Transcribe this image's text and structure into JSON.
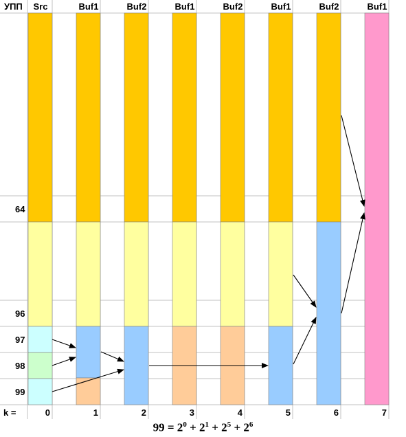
{
  "header": {
    "row_label": "УПП",
    "columns": [
      "Src",
      "Buf1",
      "Buf2",
      "Buf1",
      "Buf2",
      "Buf1",
      "Buf2",
      "Buf1"
    ]
  },
  "row_labels": [
    "64",
    "96",
    "97",
    "98",
    "99"
  ],
  "k_row": {
    "label": "k =",
    "values": [
      "0",
      "1",
      "2",
      "3",
      "4",
      "5",
      "6",
      "7"
    ]
  },
  "formula": {
    "lhs": "99 = 2",
    "exp0": "0",
    "plus1": " + 2",
    "exp1": "1",
    "plus2": " + 2",
    "exp2": "5",
    "plus3": " + 2",
    "exp3": "6"
  },
  "colors": {
    "orange": "#FFC800",
    "pale_yellow": "#FFFF9F",
    "cyan": "#CCFFFF",
    "green": "#CCFFCC",
    "blue": "#99CCFF",
    "peach": "#FFCC99",
    "pink": "#FF99CC",
    "grid": "#C0C0C0"
  },
  "segments": [
    [
      {
        "from_row": "top",
        "to_row": "64",
        "color": "orange"
      },
      {
        "from_row": "64",
        "to_row": "96",
        "color": "pale_yellow"
      },
      {
        "from_row": "96",
        "to_row": "97",
        "color": "cyan"
      },
      {
        "from_row": "97",
        "to_row": "98",
        "color": "green"
      },
      {
        "from_row": "98",
        "to_row": "99",
        "color": "cyan"
      }
    ],
    [
      {
        "from_row": "top",
        "to_row": "64",
        "color": "orange"
      },
      {
        "from_row": "64",
        "to_row": "96",
        "color": "pale_yellow"
      },
      {
        "from_row": "96",
        "to_row": "98.9",
        "color": "blue"
      },
      {
        "from_row": "98.9",
        "to_row": "99",
        "color": "peach"
      }
    ],
    [
      {
        "from_row": "top",
        "to_row": "64",
        "color": "orange"
      },
      {
        "from_row": "64",
        "to_row": "96",
        "color": "pale_yellow"
      },
      {
        "from_row": "96",
        "to_row": "99",
        "color": "blue"
      }
    ],
    [
      {
        "from_row": "top",
        "to_row": "64",
        "color": "orange"
      },
      {
        "from_row": "64",
        "to_row": "96",
        "color": "pale_yellow"
      },
      {
        "from_row": "96",
        "to_row": "99",
        "color": "peach"
      }
    ],
    [
      {
        "from_row": "top",
        "to_row": "64",
        "color": "orange"
      },
      {
        "from_row": "64",
        "to_row": "96",
        "color": "pale_yellow"
      },
      {
        "from_row": "96",
        "to_row": "99",
        "color": "peach"
      }
    ],
    [
      {
        "from_row": "top",
        "to_row": "64",
        "color": "orange"
      },
      {
        "from_row": "64",
        "to_row": "96",
        "color": "pale_yellow"
      },
      {
        "from_row": "96",
        "to_row": "99",
        "color": "blue"
      }
    ],
    [
      {
        "from_row": "top",
        "to_row": "64",
        "color": "orange"
      },
      {
        "from_row": "64",
        "to_row": "99",
        "color": "blue"
      }
    ],
    [
      {
        "from_row": "top",
        "to_row": "99",
        "color": "pink"
      }
    ]
  ]
}
